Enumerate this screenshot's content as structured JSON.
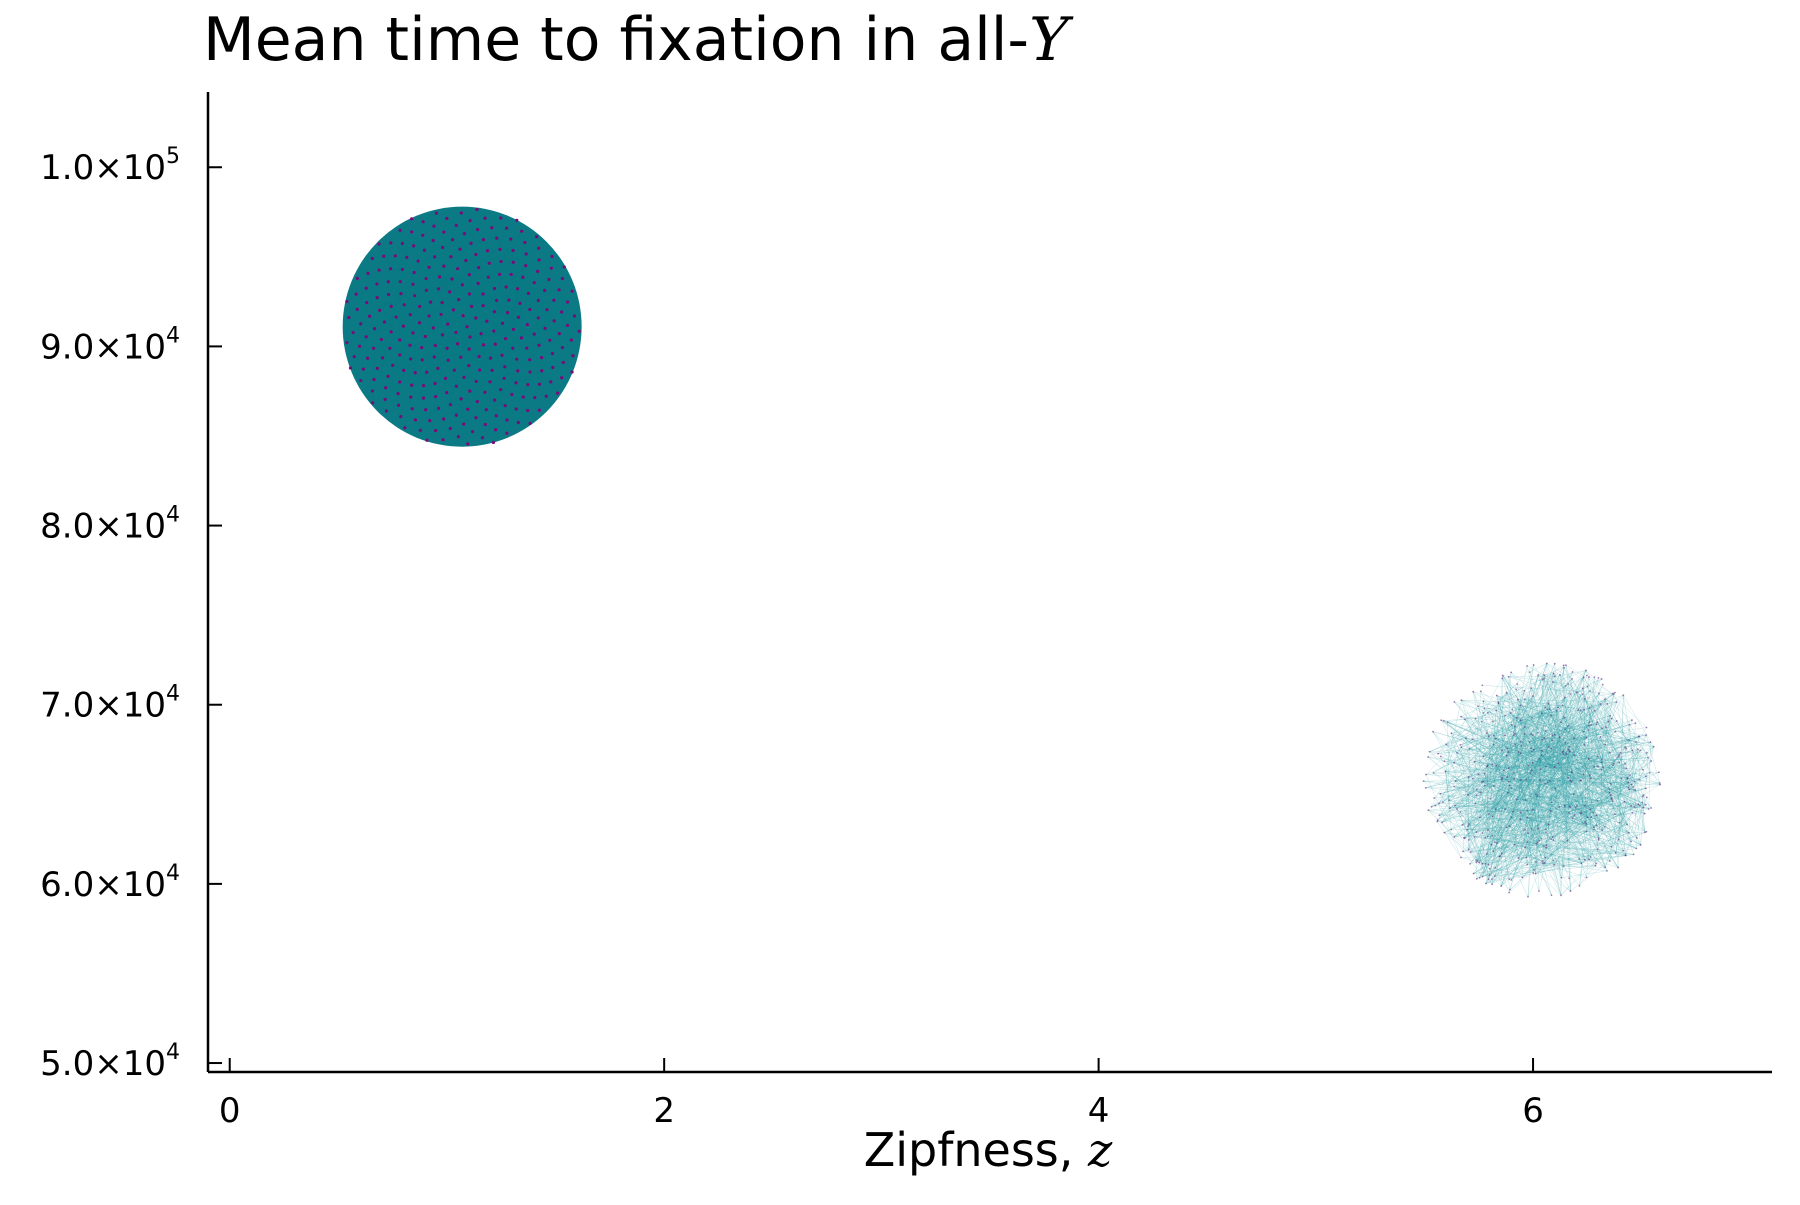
{
  "chart_data": {
    "type": "scatter",
    "title": "Mean time to fixation in all-",
    "title_math": "Y",
    "xlabel": "Zipfness, ",
    "xlabel_math": "z",
    "ylabel": "",
    "xlim": [
      -0.1,
      7.1
    ],
    "ylim": [
      49500,
      104200
    ],
    "x_ticks": [
      0,
      2,
      4,
      6
    ],
    "x_tick_labels": [
      "0",
      "2",
      "4",
      "6"
    ],
    "y_ticks": [
      50000,
      60000,
      70000,
      80000,
      90000,
      100000
    ],
    "y_tick_labels": [
      {
        "mantissa": "5.0×10",
        "exponent": "4"
      },
      {
        "mantissa": "6.0×10",
        "exponent": "4"
      },
      {
        "mantissa": "7.0×10",
        "exponent": "4"
      },
      {
        "mantissa": "8.0×10",
        "exponent": "4"
      },
      {
        "mantissa": "9.0×10",
        "exponent": "4"
      },
      {
        "mantissa": "1.0×10",
        "exponent": "5"
      }
    ],
    "grid": false,
    "legend": "none",
    "clusters": [
      {
        "center": [
          1.07,
          91100
        ],
        "rx": 0.55,
        "ry": 6700,
        "style": "dense",
        "fill_color": "#0b7a85",
        "point_color": "#7a0a7a",
        "point_count": 300
      },
      {
        "center": [
          6.04,
          65800
        ],
        "rx": 0.55,
        "ry": 6600,
        "style": "sparse",
        "line_color": "#2a9ea4",
        "point_color": "#6a1f7a",
        "point_count": 520
      }
    ]
  }
}
